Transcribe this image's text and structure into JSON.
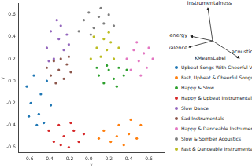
{
  "chart_data": {
    "type": "scatter",
    "x_label": "x",
    "y_label": "y",
    "xlim": [
      -0.7,
      0.75
    ],
    "ylim": [
      -0.65,
      0.7
    ],
    "xticks": [
      -0.6,
      -0.4,
      -0.2,
      {
        "value": 0,
        "label": "0.0"
      },
      0.2,
      0.4,
      0.6
    ],
    "yticks": [
      -0.6,
      -0.4,
      -0.2,
      {
        "value": 0,
        "label": "0.0"
      },
      0.2,
      0.4,
      0.6
    ],
    "grid": false,
    "legend": "right",
    "legend_title": "KMeansLabel",
    "annotations": [
      "instrumentalness",
      "energy",
      "valence",
      "acousticness"
    ],
    "series": [
      {
        "name": "Upbeat Songs With Cheerful Vocals",
        "color": "#1f77b4",
        "x": [
          -0.62,
          -0.58,
          -0.55,
          -0.5,
          -0.48,
          -0.45,
          -0.42,
          -0.6,
          -0.38,
          -0.52
        ],
        "y": [
          -0.05,
          -0.2,
          0.05,
          -0.3,
          -0.12,
          -0.38,
          0.0,
          -0.32,
          -0.22,
          -0.4
        ]
      },
      {
        "name": "Fast, Upbeat & Cheerful Songs",
        "color": "#ff7f0e",
        "x": [
          0.15,
          0.22,
          0.3,
          0.35,
          0.4,
          0.48,
          0.28,
          0.52,
          0.1,
          0.42
        ],
        "y": [
          -0.45,
          -0.55,
          -0.4,
          -0.58,
          -0.48,
          -0.52,
          -0.5,
          -0.4,
          -0.52,
          -0.35
        ]
      },
      {
        "name": "Happy & Slow",
        "color": "#2ca02c",
        "x": [
          0.1,
          0.15,
          0.2,
          0.25,
          0.3,
          0.35,
          0.18,
          0.28,
          0.08,
          0.38
        ],
        "y": [
          0.05,
          -0.02,
          0.1,
          0.02,
          0.12,
          0.05,
          0.14,
          -0.05,
          0.12,
          0.1
        ]
      },
      {
        "name": "Happy & Upbeat Instrumentals",
        "color": "#d62728",
        "x": [
          -0.4,
          -0.35,
          -0.3,
          -0.25,
          -0.2,
          -0.15,
          -0.1,
          -0.05,
          -0.28,
          -0.18
        ],
        "y": [
          -0.45,
          -0.55,
          -0.4,
          -0.5,
          -0.6,
          -0.45,
          -0.55,
          -0.48,
          -0.58,
          -0.38
        ]
      },
      {
        "name": "Slow Dance",
        "color": "#9467bd",
        "x": [
          -0.42,
          -0.38,
          -0.35,
          -0.3,
          -0.28,
          -0.25,
          -0.22,
          -0.4,
          -0.32,
          -0.2
        ],
        "y": [
          0.3,
          0.45,
          0.2,
          0.38,
          0.5,
          0.28,
          0.42,
          0.18,
          0.55,
          0.33
        ]
      },
      {
        "name": "Sad Instrumentals",
        "color": "#8c564b",
        "x": [
          -0.42,
          -0.38,
          -0.35,
          -0.3,
          -0.28,
          -0.25,
          -0.22,
          -0.18,
          -0.33,
          -0.2
        ],
        "y": [
          0.12,
          0.05,
          0.18,
          0.1,
          0.2,
          0.02,
          0.15,
          0.08,
          -0.02,
          0.22
        ]
      },
      {
        "name": "Happy & Danceable Instrumentals",
        "color": "#e377c2",
        "x": [
          0.38,
          0.42,
          0.45,
          0.5,
          0.55,
          0.58,
          0.6,
          0.48,
          0.52,
          0.64
        ],
        "y": [
          0.2,
          0.1,
          0.28,
          0.18,
          0.25,
          0.12,
          0.3,
          0.35,
          0.05,
          0.2
        ]
      },
      {
        "name": "Slow & Somber Acoustics",
        "color": "#7f7f7f",
        "x": [
          -0.05,
          0.0,
          0.05,
          0.1,
          0.15,
          0.2,
          0.25,
          0.02,
          0.12,
          -0.1
        ],
        "y": [
          0.55,
          0.62,
          0.48,
          0.58,
          0.52,
          0.6,
          0.5,
          0.42,
          0.66,
          0.45
        ]
      },
      {
        "name": "Fast & Danceable Instrumentals",
        "color": "#bcbd22",
        "x": [
          0.02,
          0.08,
          0.12,
          0.15,
          0.18,
          0.22,
          0.25,
          0.3,
          0.05,
          0.2
        ],
        "y": [
          0.2,
          0.3,
          0.22,
          0.38,
          0.28,
          0.35,
          0.2,
          0.3,
          0.4,
          0.44
        ]
      }
    ]
  }
}
